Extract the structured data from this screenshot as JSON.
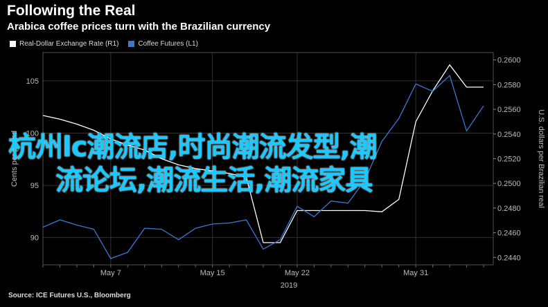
{
  "header": {
    "title": "Following the Real",
    "subtitle": "Arabica coffee prices turn with the Brazilian currency"
  },
  "legend": {
    "items": [
      {
        "label": "Real-Dollar Exchange Rate (R1)",
        "color": "#ffffff"
      },
      {
        "label": "Coffee Futures (L1)",
        "color": "#3a78d4"
      }
    ]
  },
  "overlay": {
    "line1": "杭州lc潮流店,时尚潮流发型,潮",
    "line2": "流论坛,潮流生活,潮流家具"
  },
  "source": "Source: ICE Futures U.S., Bloomberg",
  "chart_data": {
    "type": "line",
    "x": [
      "Apr 30",
      "May 2",
      "May 3",
      "May 6",
      "May 7",
      "May 8",
      "May 9",
      "May 10",
      "May 13",
      "May 14",
      "May 15",
      "May 16",
      "May 17",
      "May 20",
      "May 21",
      "May 22",
      "May 23",
      "May 24",
      "May 27",
      "May 28",
      "May 29",
      "May 30",
      "May 31",
      "Jun 3",
      "Jun 4",
      "Jun 5"
    ],
    "x_tick_labels": [
      "May 7",
      "May 15",
      "May 22",
      "May 31"
    ],
    "x_tick_positions": [
      "May 7",
      "May 15",
      "May 22",
      "May 31"
    ],
    "x_group_label": "2019",
    "left_axis": {
      "label": "Cents per pound",
      "ticks": [
        "90",
        "95",
        "100",
        "105"
      ],
      "range": [
        87.4,
        107.7
      ]
    },
    "right_axis": {
      "label": "U.S. dollars per Brazilian real",
      "ticks": [
        "0.2440",
        "0.2460",
        "0.2480",
        "0.2500",
        "0.2520",
        "0.2540",
        "0.2560",
        "0.2580",
        "0.2600"
      ],
      "range": [
        0.2434,
        0.2606
      ]
    },
    "series": [
      {
        "name": "Real-Dollar Exchange Rate (R1)",
        "axis": "right",
        "color": "#ffffff",
        "values": [
          0.2555,
          0.2552,
          0.2548,
          0.2543,
          0.2536,
          0.2531,
          0.2527,
          0.252,
          0.2515,
          0.2512,
          0.251,
          0.2508,
          0.2505,
          0.2452,
          0.2452,
          0.2478,
          0.2478,
          0.2478,
          0.2478,
          0.2478,
          0.2477,
          0.2487,
          0.255,
          0.2575,
          0.2596,
          0.2578
        ]
      },
      {
        "name": "Coffee Futures (L1)",
        "axis": "left",
        "color": "#3a78d4",
        "values": [
          91.0,
          91.7,
          91.2,
          90.8,
          88.0,
          88.6,
          90.9,
          90.8,
          89.8,
          90.9,
          91.3,
          91.4,
          91.7,
          88.9,
          89.8,
          93.0,
          92.0,
          93.5,
          93.3,
          95.5,
          99.2,
          101.4,
          104.7,
          104.0,
          105.5,
          100.2
        ]
      }
    ],
    "extra_series_tail": {
      "name": "Coffee Futures (L1)",
      "x": "Jun 6",
      "value": 102.6
    },
    "extra_series_tail_white": {
      "name": "Real-Dollar Exchange Rate (R1)",
      "x": "Jun 6",
      "value": 0.2578
    },
    "grid": true
  }
}
